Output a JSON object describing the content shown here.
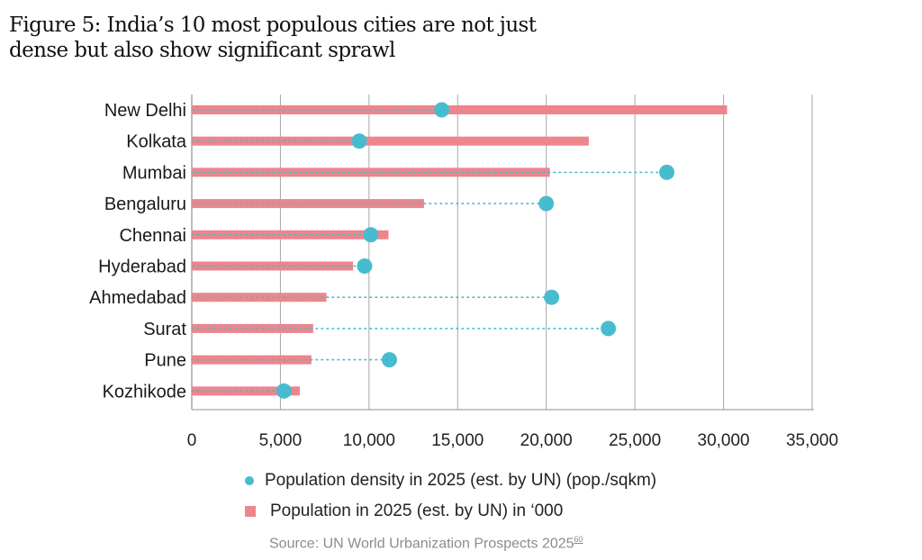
{
  "figure": {
    "title_line1": "Figure 5: India’s 10 most populous cities are not just",
    "title_line2": "dense but also show significant sprawl",
    "source_text": "Source: UN World Urbanization Prospects 2025",
    "source_ref": "60"
  },
  "colors": {
    "bar": "#ee858c",
    "dot": "#47bccf",
    "grid": "#a6a6a6",
    "axis": "#a6a6a6"
  },
  "chart_data": {
    "type": "bar",
    "orientation": "horizontal",
    "title": "Figure 5: India’s 10 most populous cities are not just dense but also show significant sprawl",
    "xlabel": "",
    "ylabel": "",
    "xlim": [
      0,
      35000
    ],
    "x_ticks": [
      0,
      5000,
      10000,
      15000,
      20000,
      25000,
      30000,
      35000
    ],
    "x_tick_labels": [
      "0",
      "5,000",
      "10,000",
      "15,000",
      "20,000",
      "25,000",
      "30,000",
      "35,000"
    ],
    "grid": "vertical",
    "legend_position": "bottom",
    "categories": [
      "New Delhi",
      "Kolkata",
      "Mumbai",
      "Bengaluru",
      "Chennai",
      "Hyderabad",
      "Ahmedabad",
      "Surat",
      "Pune",
      "Kozhikode"
    ],
    "series": [
      {
        "name": "Population in 2025 (est. by UN) in ‘000",
        "mark": "bar",
        "values": [
          30200,
          22400,
          20200,
          13100,
          11100,
          9100,
          7600,
          6850,
          6750,
          6100
        ]
      },
      {
        "name": "Population density in 2025 (est. by UN) (pop./sqkm)",
        "mark": "dot",
        "values": [
          14100,
          9450,
          26800,
          20000,
          10100,
          9750,
          20300,
          23500,
          11150,
          5200
        ]
      }
    ]
  }
}
